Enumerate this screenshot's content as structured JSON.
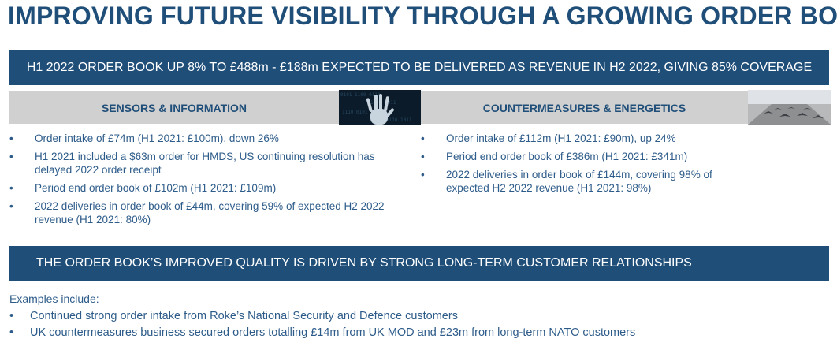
{
  "title": "IMPROVING FUTURE VISIBILITY THROUGH A GROWING ORDER BOOK",
  "top_banner": "H1 2022 ORDER BOOK UP 8% TO £488m - £188m EXPECTED TO BE DELIVERED AS REVENUE IN H2 2022, GIVING 85% COVERAGE",
  "left_section": {
    "heading": "SENSORS & INFORMATION",
    "image_icon": "hand-digital-icon",
    "bullets": [
      "Order intake of £74m (H1 2021: £100m), down 26%",
      "H1 2021 included a $63m order for HMDS, US continuing resolution has delayed 2022 order receipt",
      "Period end order book of £102m (H1 2021: £109m)",
      "2022 deliveries in order book of £44m, covering 59% of expected H2 2022 revenue (H1 2021: 80%)"
    ]
  },
  "right_section": {
    "heading": "COUNTERMEASURES & ENERGETICS",
    "image_icon": "fighter-jets-runway-icon",
    "bullets": [
      "Order intake of £112m (H1 2021: £90m), up 24%",
      "Period end order book of £386m (H1 2021: £341m)",
      "2022 deliveries in order book of £144m, covering 98% of expected H2 2022 revenue (H1 2021: 98%)"
    ]
  },
  "middle_banner": "THE ORDER BOOK’S IMPROVED QUALITY IS DRIVEN BY STRONG LONG-TERM CUSTOMER RELATIONSHIPS",
  "examples": {
    "intro": "Examples include:",
    "bullets": [
      "Continued strong order intake from Roke’s National Security and Defence customers",
      "UK countermeasures business secured orders totalling £14m from UK MOD and £23m from long-term NATO customers"
    ]
  },
  "colors": {
    "navy": "#1f4e79",
    "text_blue": "#2e5c8a",
    "grey_header": "#d0d0d0"
  }
}
